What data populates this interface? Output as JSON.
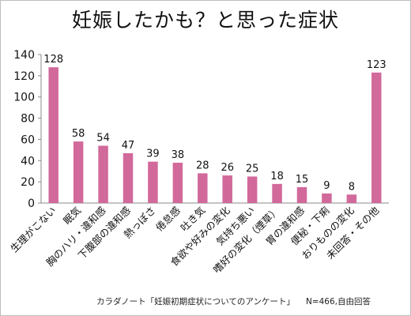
{
  "chart_data": {
    "type": "bar",
    "title": "妊娠したかも？と思った症状",
    "categories": [
      "生理がこない",
      "眠気",
      "胸のハリ・違和感",
      "下腹部の違和感",
      "熱っぽさ",
      "倦怠感",
      "吐き気",
      "食欲や好みの変化",
      "気持ち悪い",
      "嗜好の変化（煙草）",
      "胃の違和感",
      "便秘・下痢",
      "おりものの変化",
      "未回答・その他"
    ],
    "values": [
      128,
      58,
      54,
      47,
      39,
      38,
      28,
      26,
      25,
      18,
      15,
      9,
      8,
      123
    ],
    "ylim": [
      0,
      140
    ],
    "yticks": [
      0,
      20,
      40,
      60,
      80,
      100,
      120,
      140
    ],
    "bar_color": "#d2699b",
    "data_labels": true,
    "grid": false
  },
  "footer": {
    "source": "カラダノート「妊娠初期症状についてのアンケート」",
    "note": "N=466,自由回答"
  }
}
